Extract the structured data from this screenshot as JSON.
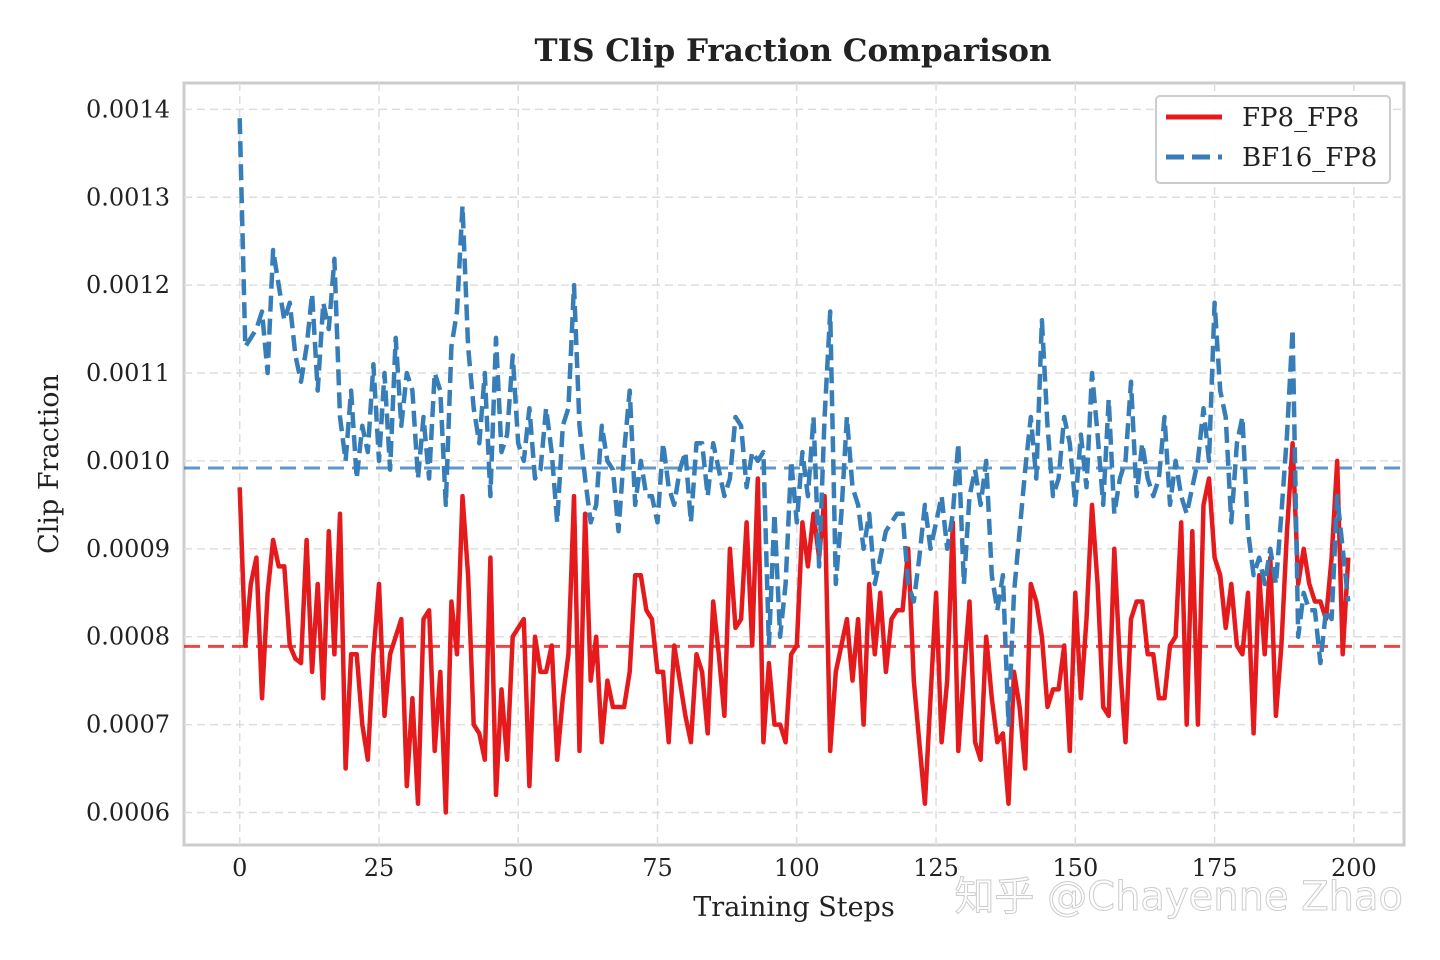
{
  "chart_data": {
    "type": "line",
    "title": "TIS Clip Fraction Comparison",
    "xlabel": "Training Steps",
    "ylabel": "Clip Fraction",
    "xlim": [
      -10,
      209
    ],
    "ylim": [
      0.000563,
      0.00143
    ],
    "xticks": [
      "0",
      "25",
      "50",
      "75",
      "100",
      "125",
      "150",
      "175",
      "200"
    ],
    "yticks": [
      "0.0006",
      "0.0007",
      "0.0008",
      "0.0009",
      "0.0010",
      "0.0011",
      "0.0012",
      "0.0013",
      "0.0014"
    ],
    "grid": true,
    "legend_position": "top-right",
    "series": [
      {
        "name": "FP8_FP8",
        "color": "#e41a1c",
        "style": "solid",
        "mean": 0.000789,
        "values": [
          0.00097,
          0.00079,
          0.00086,
          0.00089,
          0.00073,
          0.00085,
          0.00091,
          0.00088,
          0.00088,
          0.00079,
          0.000775,
          0.00077,
          0.00091,
          0.00076,
          0.00086,
          0.00073,
          0.00092,
          0.00078,
          0.00094,
          0.00065,
          0.00078,
          0.00078,
          0.0007,
          0.00066,
          0.00078,
          0.00086,
          0.00071,
          0.00078,
          0.0008,
          0.00082,
          0.00063,
          0.00073,
          0.00061,
          0.00082,
          0.00083,
          0.00067,
          0.00076,
          0.0006,
          0.00084,
          0.00078,
          0.00096,
          0.00087,
          0.0007,
          0.00069,
          0.00066,
          0.00089,
          0.00062,
          0.00074,
          0.00066,
          0.0008,
          0.00081,
          0.00082,
          0.00063,
          0.0008,
          0.00076,
          0.00076,
          0.00079,
          0.00066,
          0.00073,
          0.00078,
          0.00096,
          0.00067,
          0.00094,
          0.00075,
          0.0008,
          0.00068,
          0.00075,
          0.00072,
          0.00072,
          0.00072,
          0.00076,
          0.00087,
          0.00087,
          0.00083,
          0.00082,
          0.00076,
          0.00076,
          0.00068,
          0.00079,
          0.00075,
          0.00071,
          0.00068,
          0.00078,
          0.00076,
          0.00069,
          0.00084,
          0.00078,
          0.00071,
          0.0009,
          0.00081,
          0.00082,
          0.00093,
          0.00079,
          0.00098,
          0.00068,
          0.00077,
          0.0007,
          0.0007,
          0.00068,
          0.00078,
          0.00079,
          0.00093,
          0.00088,
          0.00094,
          0.00089,
          0.00096,
          0.00067,
          0.00076,
          0.00079,
          0.00082,
          0.00075,
          0.00082,
          0.0007,
          0.00086,
          0.00078,
          0.00085,
          0.00076,
          0.00082,
          0.00083,
          0.00083,
          0.0009,
          0.00075,
          0.00068,
          0.00061,
          0.00073,
          0.00085,
          0.00068,
          0.00075,
          0.00093,
          0.00067,
          0.00076,
          0.00084,
          0.00068,
          0.00066,
          0.0008,
          0.00073,
          0.00068,
          0.00069,
          0.00061,
          0.00076,
          0.00072,
          0.00065,
          0.00086,
          0.00084,
          0.0008,
          0.00072,
          0.00074,
          0.00074,
          0.00079,
          0.00067,
          0.00085,
          0.00073,
          0.00082,
          0.00095,
          0.00086,
          0.00072,
          0.00071,
          0.0009,
          0.00077,
          0.00068,
          0.00082,
          0.00084,
          0.00084,
          0.00078,
          0.00078,
          0.00073,
          0.00073,
          0.00079,
          0.0008,
          0.00093,
          0.0007,
          0.00092,
          0.0007,
          0.00095,
          0.00098,
          0.00089,
          0.00087,
          0.00081,
          0.00086,
          0.00079,
          0.00078,
          0.00085,
          0.00069,
          0.00087,
          0.00078,
          0.00089,
          0.00071,
          0.00079,
          0.00092,
          0.00102,
          0.00086,
          0.0009,
          0.00086,
          0.00084,
          0.00084,
          0.00082,
          0.00089,
          0.001,
          0.00078,
          0.00089
        ]
      },
      {
        "name": "BF16_FP8",
        "color": "#377eb8",
        "style": "dashed",
        "mean": 0.000992,
        "values": [
          0.00139,
          0.00113,
          0.00114,
          0.00115,
          0.00117,
          0.0011,
          0.00124,
          0.0012,
          0.00116,
          0.00118,
          0.00112,
          0.00109,
          0.00113,
          0.00119,
          0.00108,
          0.00118,
          0.00115,
          0.00123,
          0.00105,
          0.001,
          0.00108,
          0.00098,
          0.00104,
          0.00101,
          0.00111,
          0.001,
          0.0011,
          0.00099,
          0.00114,
          0.00104,
          0.0011,
          0.00108,
          0.00098,
          0.00105,
          0.00098,
          0.0011,
          0.00108,
          0.00095,
          0.00113,
          0.00117,
          0.00129,
          0.00113,
          0.00106,
          0.00102,
          0.0011,
          0.00096,
          0.00114,
          0.00101,
          0.00103,
          0.00112,
          0.00102,
          0.001,
          0.00106,
          0.00098,
          0.00099,
          0.00106,
          0.00101,
          0.00093,
          0.00104,
          0.00106,
          0.0012,
          0.00104,
          0.00098,
          0.00093,
          0.00095,
          0.00104,
          0.001,
          0.00099,
          0.00092,
          0.00101,
          0.00108,
          0.00095,
          0.001,
          0.00096,
          0.00096,
          0.00093,
          0.00102,
          0.00097,
          0.00095,
          0.00099,
          0.00101,
          0.00093,
          0.00102,
          0.00102,
          0.00096,
          0.00102,
          0.00099,
          0.00096,
          0.00098,
          0.00105,
          0.00104,
          0.00097,
          0.00101,
          0.001,
          0.00101,
          0.00079,
          0.00094,
          0.0008,
          0.00086,
          0.001,
          0.00093,
          0.00101,
          0.00096,
          0.00105,
          0.00088,
          0.00105,
          0.00117,
          0.00086,
          0.00094,
          0.00105,
          0.00097,
          0.00095,
          0.0009,
          0.00094,
          0.00086,
          0.00089,
          0.00092,
          0.00093,
          0.00094,
          0.00094,
          0.00086,
          0.00084,
          0.00089,
          0.00095,
          0.0009,
          0.00093,
          0.00096,
          0.0009,
          0.00094,
          0.00102,
          0.00086,
          0.00096,
          0.00099,
          0.00095,
          0.001,
          0.00087,
          0.00083,
          0.00087,
          0.0007,
          0.00085,
          0.00092,
          0.00099,
          0.00105,
          0.00098,
          0.00116,
          0.00104,
          0.00096,
          0.00098,
          0.00105,
          0.00102,
          0.00095,
          0.00103,
          0.00097,
          0.0011,
          0.00103,
          0.00095,
          0.00107,
          0.00094,
          0.00098,
          0.001,
          0.00109,
          0.00096,
          0.00102,
          0.00098,
          0.00096,
          0.00098,
          0.00105,
          0.00095,
          0.001,
          0.00096,
          0.00094,
          0.00097,
          0.001,
          0.00106,
          0.001,
          0.00118,
          0.00108,
          0.00105,
          0.00093,
          0.00102,
          0.00105,
          0.00092,
          0.00087,
          0.00089,
          0.00086,
          0.0009,
          0.00086,
          0.00094,
          0.00103,
          0.00115,
          0.0008,
          0.00085,
          0.00083,
          0.00083,
          0.00077,
          0.00083,
          0.00082,
          0.00096,
          0.0009,
          0.00084
        ]
      }
    ]
  },
  "watermark": "知乎 @Chayenne Zhao"
}
